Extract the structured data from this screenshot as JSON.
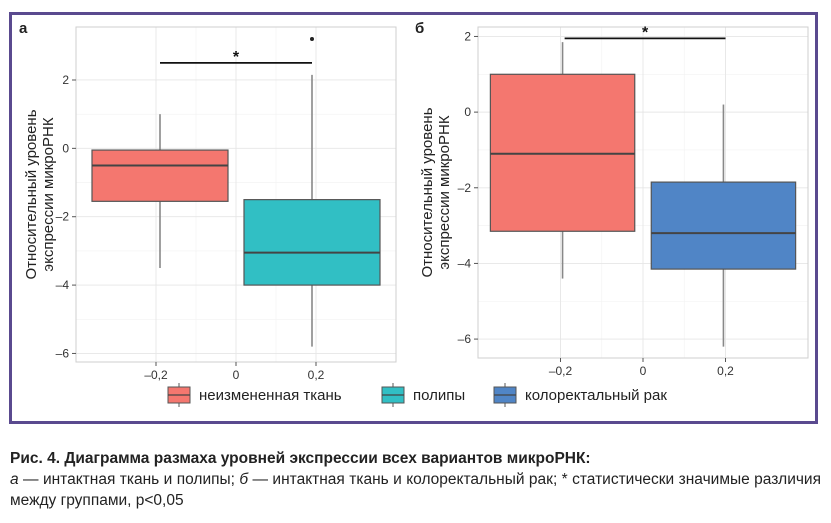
{
  "figure": {
    "border_color": "#5a4a8f",
    "legend": [
      {
        "label": "неизмененная ткань",
        "color": "#f4776f"
      },
      {
        "label": "полипы",
        "color": "#31bfc4"
      },
      {
        "label": "колоректальный рак",
        "color": "#5085c6"
      }
    ]
  },
  "chart_data": [
    {
      "type": "box",
      "panel_label": "а",
      "ylabel_lines": [
        "Относительный уровень",
        "экспрессии микроРНК"
      ],
      "xlim": [
        -0.4,
        0.4
      ],
      "ylim": [
        -6.25,
        3.55
      ],
      "x_ticks": [
        -0.2,
        0,
        0.2
      ],
      "x_tick_labels": [
        "–0,2",
        "0",
        "0,2"
      ],
      "y_ticks": [
        2,
        0,
        -2,
        -4,
        -6
      ],
      "y_tick_labels": [
        "2",
        "0",
        "–2",
        "–4",
        "–6"
      ],
      "grid": true,
      "boxes": [
        {
          "group": "неизмененная ткань",
          "color": "#f4776f",
          "x_range": [
            -0.36,
            -0.02
          ],
          "whisker_low": -3.5,
          "q1": -1.55,
          "median": -0.5,
          "q3": -0.05,
          "whisker_high": 1.0
        },
        {
          "group": "полипы",
          "color": "#31bfc4",
          "x_range": [
            0.02,
            0.36
          ],
          "whisker_low": -5.8,
          "q1": -4.0,
          "median": -3.05,
          "q3": -1.5,
          "whisker_high": 2.15
        }
      ],
      "outliers": [
        {
          "x": 0.19,
          "y": 3.2
        }
      ],
      "significance": {
        "label": "*",
        "x_from": -0.19,
        "x_to": 0.19,
        "y": 2.5
      }
    },
    {
      "type": "box",
      "panel_label": "б",
      "ylabel_lines": [
        "Относительный уровень",
        "экспрессии микроРНК"
      ],
      "xlim": [
        -0.4,
        0.4
      ],
      "ylim": [
        -6.5,
        2.25
      ],
      "x_ticks": [
        -0.2,
        0,
        0.2
      ],
      "x_tick_labels": [
        "–0,2",
        "0",
        "0,2"
      ],
      "y_ticks": [
        2,
        0,
        -2,
        -4,
        -6
      ],
      "y_tick_labels": [
        "2",
        "0",
        "–2",
        "–4",
        "–6"
      ],
      "grid": true,
      "boxes": [
        {
          "group": "неизмененная ткань",
          "color": "#f4776f",
          "x_range": [
            -0.37,
            -0.02
          ],
          "whisker_low": -4.4,
          "q1": -3.15,
          "median": -1.1,
          "q3": 1.0,
          "whisker_high": 1.85
        },
        {
          "group": "колоректальный рак",
          "color": "#5085c6",
          "x_range": [
            0.02,
            0.37
          ],
          "whisker_low": -6.2,
          "q1": -4.15,
          "median": -3.2,
          "q3": -1.85,
          "whisker_high": 0.2
        }
      ],
      "outliers": [],
      "significance": {
        "label": "*",
        "x_from": -0.19,
        "x_to": 0.2,
        "y": 1.95
      }
    }
  ],
  "caption": {
    "title": "Рис. 4. Диаграмма размаха уровней экспрессии всех вариантов микроРНК:",
    "a_letter": "а",
    "a_text": " — интактная ткань и полипы; ",
    "b_letter": "б",
    "b_text": " — интактная ткань и колоректальный рак; * статистически значимые различия между группами, p<0,05"
  }
}
